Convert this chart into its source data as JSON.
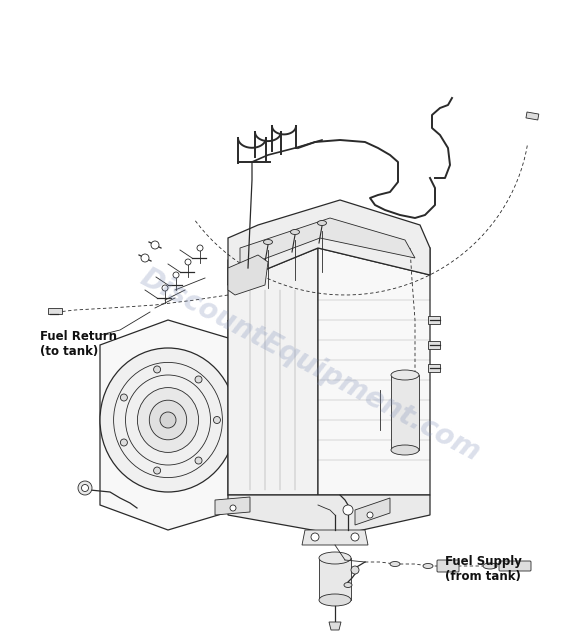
{
  "bg_color": "#ffffff",
  "line_color": "#2a2a2a",
  "watermark_color": "#8090b8",
  "watermark_text": "DiscountEquipment.com",
  "watermark_alpha": 0.28,
  "label_fuel_return": "Fuel Return\n(to tank)",
  "label_fuel_supply": "Fuel Supply\n(from tank)",
  "label_fontsize": 8.5,
  "lw_main": 0.9,
  "lw_thick": 1.4,
  "lw_thin": 0.6
}
